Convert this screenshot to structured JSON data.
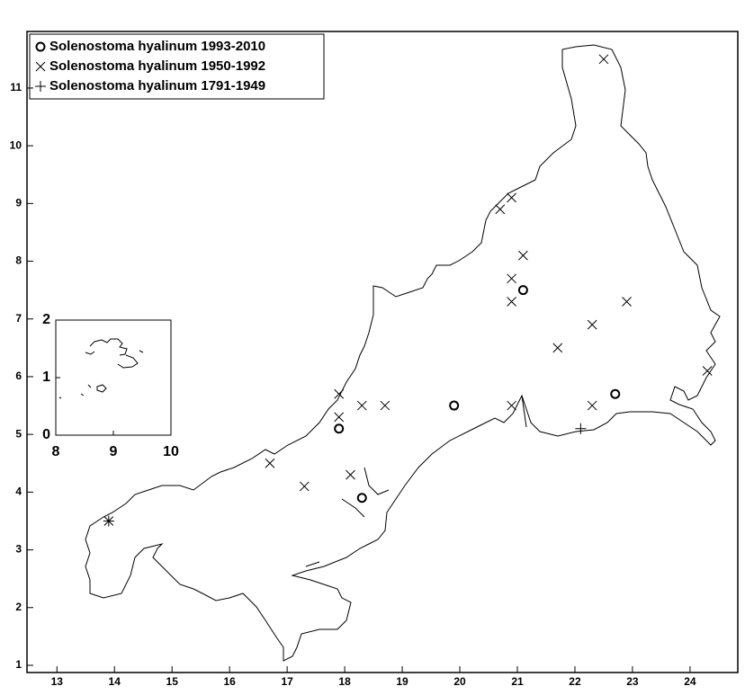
{
  "chart_data": {
    "type": "scatter",
    "xlim": [
      12.48,
      24.83
    ],
    "ylim": [
      0.875,
      11.98
    ],
    "xticks": [
      13,
      14,
      15,
      16,
      17,
      18,
      19,
      20,
      21,
      22,
      23,
      24
    ],
    "yticks": [
      1,
      2,
      3,
      4,
      5,
      6,
      7,
      8,
      9,
      10,
      11
    ],
    "legend": "upper left",
    "series": [
      {
        "name": "Solenostoma hyalinum 1993-2010",
        "marker": "o",
        "color": "#000000",
        "x": [
          17.9,
          18.3,
          19.9,
          21.1,
          22.7
        ],
        "values": [
          5.1,
          3.9,
          5.5,
          7.5,
          5.7
        ]
      },
      {
        "name": "Solenostoma hyalinum 1950-1992",
        "marker": "x",
        "color": "#000000",
        "x": [
          22.5,
          20.7,
          20.9,
          21.1,
          20.9,
          20.9,
          22.9,
          22.3,
          21.7,
          24.3,
          17.9,
          17.9,
          18.3,
          18.7,
          20.9,
          22.3,
          16.7,
          17.3,
          18.1,
          13.9
        ],
        "values": [
          11.5,
          8.9,
          9.1,
          8.1,
          7.7,
          7.3,
          7.3,
          6.9,
          6.5,
          6.1,
          5.7,
          5.3,
          5.5,
          5.5,
          5.5,
          5.5,
          4.5,
          4.1,
          4.3,
          3.5
        ]
      },
      {
        "name": "Solenostoma hyalinum 1791-1949",
        "marker": "+",
        "color": "#000000",
        "x": [
          13.9,
          22.1
        ],
        "values": [
          3.5,
          5.1
        ]
      }
    ],
    "inset": {
      "xlim": [
        8,
        10
      ],
      "ylim": [
        0,
        2
      ],
      "xticks": [
        8,
        9,
        10
      ],
      "yticks": [
        0,
        1,
        2
      ]
    }
  }
}
